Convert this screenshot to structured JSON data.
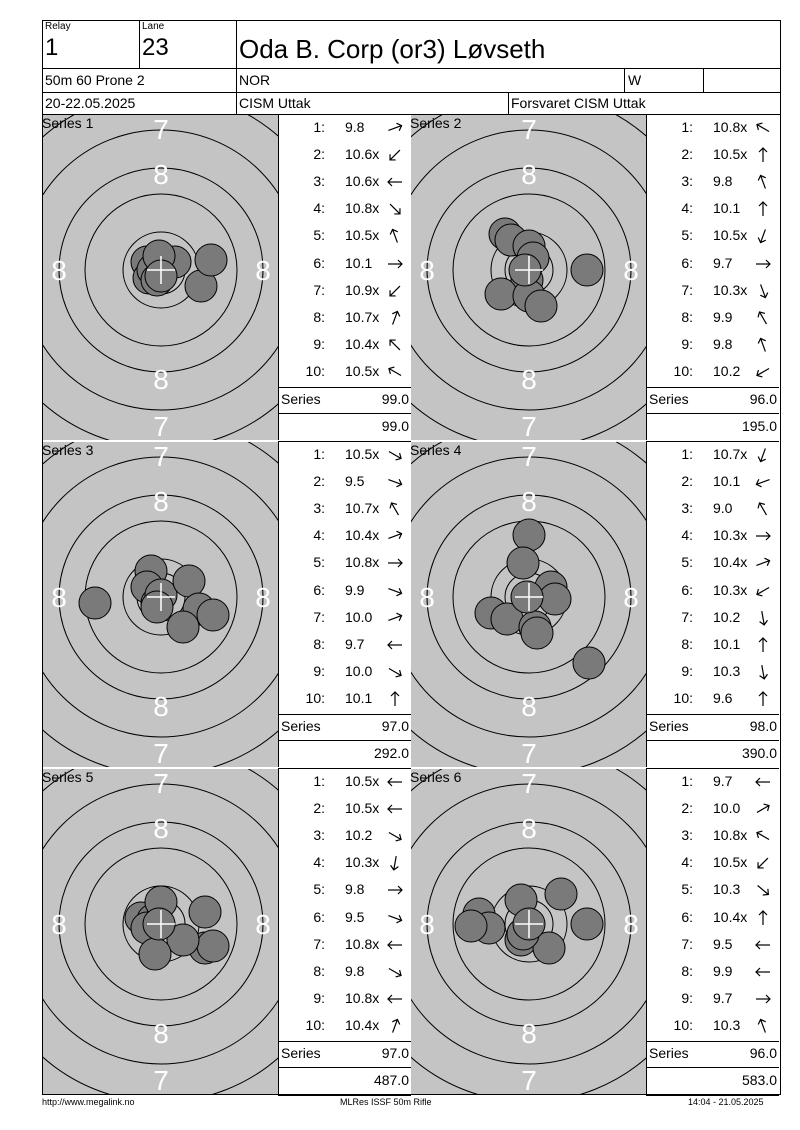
{
  "header": {
    "relay_label": "Relay",
    "relay_value": "1",
    "lane_label": "Lane",
    "lane_value": "23",
    "name": "Oda B. Corp (or3) Løvseth",
    "event": "50m 60 Prone 2",
    "nation": "NOR",
    "gender": "W",
    "dates": "20-22.05.2025",
    "competition": "CISM Uttak",
    "club": "Forsvaret CISM Uttak"
  },
  "target_rings": [
    "7",
    "8"
  ],
  "series_word": "Series",
  "series": [
    {
      "label": "Series 1",
      "shots": [
        {
          "no": "1:",
          "score": "9.8",
          "dir": 70
        },
        {
          "no": "2:",
          "score": "10.6x",
          "dir": 225
        },
        {
          "no": "3:",
          "score": "10.6x",
          "dir": 270
        },
        {
          "no": "4:",
          "score": "10.8x",
          "dir": 135
        },
        {
          "no": "5:",
          "score": "10.5x",
          "dir": 340
        },
        {
          "no": "6:",
          "score": "10.1",
          "dir": 90
        },
        {
          "no": "7:",
          "score": "10.9x",
          "dir": 225
        },
        {
          "no": "8:",
          "score": "10.7x",
          "dir": 20
        },
        {
          "no": "9:",
          "score": "10.4x",
          "dir": 315
        },
        {
          "no": "10:",
          "score": "10.5x",
          "dir": 300
        }
      ],
      "total": "99.0",
      "cumulative": "99.0"
    },
    {
      "label": "Series 2",
      "shots": [
        {
          "no": "1:",
          "score": "10.8x",
          "dir": 300
        },
        {
          "no": "2:",
          "score": "10.5x",
          "dir": 0
        },
        {
          "no": "3:",
          "score": "9.8",
          "dir": 340
        },
        {
          "no": "4:",
          "score": "10.1",
          "dir": 0
        },
        {
          "no": "5:",
          "score": "10.5x",
          "dir": 200
        },
        {
          "no": "6:",
          "score": "9.7",
          "dir": 90
        },
        {
          "no": "7:",
          "score": "10.3x",
          "dir": 160
        },
        {
          "no": "8:",
          "score": "9.9",
          "dir": 330
        },
        {
          "no": "9:",
          "score": "9.8",
          "dir": 340
        },
        {
          "no": "10:",
          "score": "10.2",
          "dir": 240
        }
      ],
      "total": "96.0",
      "cumulative": "195.0"
    },
    {
      "label": "Series 3",
      "shots": [
        {
          "no": "1:",
          "score": "10.5x",
          "dir": 120
        },
        {
          "no": "2:",
          "score": "9.5",
          "dir": 110
        },
        {
          "no": "3:",
          "score": "10.7x",
          "dir": 330
        },
        {
          "no": "4:",
          "score": "10.4x",
          "dir": 70
        },
        {
          "no": "5:",
          "score": "10.8x",
          "dir": 90
        },
        {
          "no": "6:",
          "score": "9.9",
          "dir": 110
        },
        {
          "no": "7:",
          "score": "10.0",
          "dir": 70
        },
        {
          "no": "8:",
          "score": "9.7",
          "dir": 270
        },
        {
          "no": "9:",
          "score": "10.0",
          "dir": 120
        },
        {
          "no": "10:",
          "score": "10.1",
          "dir": 0
        }
      ],
      "total": "97.0",
      "cumulative": "292.0"
    },
    {
      "label": "Series 4",
      "shots": [
        {
          "no": "1:",
          "score": "10.7x",
          "dir": 200
        },
        {
          "no": "2:",
          "score": "10.1",
          "dir": 250
        },
        {
          "no": "3:",
          "score": "9.0",
          "dir": 330
        },
        {
          "no": "4:",
          "score": "10.3x",
          "dir": 90
        },
        {
          "no": "5:",
          "score": "10.4x",
          "dir": 70
        },
        {
          "no": "6:",
          "score": "10.3x",
          "dir": 240
        },
        {
          "no": "7:",
          "score": "10.2",
          "dir": 170
        },
        {
          "no": "8:",
          "score": "10.1",
          "dir": 0
        },
        {
          "no": "9:",
          "score": "10.3",
          "dir": 170
        },
        {
          "no": "10:",
          "score": "9.6",
          "dir": 0
        }
      ],
      "total": "98.0",
      "cumulative": "390.0"
    },
    {
      "label": "Series 5",
      "shots": [
        {
          "no": "1:",
          "score": "10.5x",
          "dir": 270
        },
        {
          "no": "2:",
          "score": "10.5x",
          "dir": 270
        },
        {
          "no": "3:",
          "score": "10.2",
          "dir": 120
        },
        {
          "no": "4:",
          "score": "10.3x",
          "dir": 190
        },
        {
          "no": "5:",
          "score": "9.8",
          "dir": 90
        },
        {
          "no": "6:",
          "score": "9.5",
          "dir": 110
        },
        {
          "no": "7:",
          "score": "10.8x",
          "dir": 270
        },
        {
          "no": "8:",
          "score": "9.8",
          "dir": 120
        },
        {
          "no": "9:",
          "score": "10.8x",
          "dir": 270
        },
        {
          "no": "10:",
          "score": "10.4x",
          "dir": 20
        }
      ],
      "total": "97.0",
      "cumulative": "487.0"
    },
    {
      "label": "Series 6",
      "shots": [
        {
          "no": "1:",
          "score": "9.7",
          "dir": 270
        },
        {
          "no": "2:",
          "score": "10.0",
          "dir": 60
        },
        {
          "no": "3:",
          "score": "10.8x",
          "dir": 300
        },
        {
          "no": "4:",
          "score": "10.5x",
          "dir": 225
        },
        {
          "no": "5:",
          "score": "10.3",
          "dir": 130
        },
        {
          "no": "6:",
          "score": "10.4x",
          "dir": 0
        },
        {
          "no": "7:",
          "score": "9.5",
          "dir": 270
        },
        {
          "no": "8:",
          "score": "9.9",
          "dir": 270
        },
        {
          "no": "9:",
          "score": "9.7",
          "dir": 90
        },
        {
          "no": "10:",
          "score": "10.3",
          "dir": 340
        }
      ],
      "total": "96.0",
      "cumulative": "583.0"
    }
  ],
  "footer": {
    "left": "http://www.megalink.no",
    "center": "MLRes ISSF 50m Rifle",
    "right": "14:04 - 21.05.2025"
  }
}
